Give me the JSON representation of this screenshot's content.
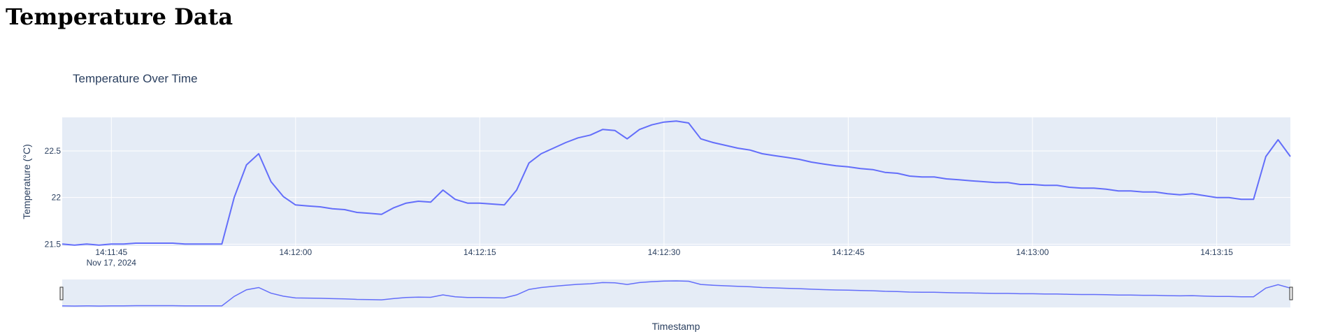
{
  "page": {
    "title": "Temperature Data"
  },
  "chart_data": {
    "type": "line",
    "title": "Temperature Over Time",
    "xlabel": "Timestamp",
    "ylabel": "Temperature (°C)",
    "x_start": "Nov 17, 2024 14:11:41",
    "x_end": "Nov 17, 2024 14:13:21",
    "x_ticks": [
      "14:11:45",
      "14:12:00",
      "14:12:15",
      "14:12:30",
      "14:12:45",
      "14:13:00",
      "14:13:15"
    ],
    "x_tick_date_label": "Nov 17, 2024",
    "y_ticks": [
      "21.5",
      "22",
      "22.5"
    ],
    "ylim": [
      21.48,
      22.86
    ],
    "grid": true,
    "legend": "none",
    "rangeslider": true,
    "line_color": "#636efa",
    "plot_bg": "#e5ecf6",
    "series": [
      {
        "x": [
          "14:11:41",
          "14:11:42",
          "14:11:43",
          "14:11:44",
          "14:11:45",
          "14:11:46",
          "14:11:47",
          "14:11:48",
          "14:11:49",
          "14:11:50",
          "14:11:51",
          "14:11:52",
          "14:11:53",
          "14:11:54",
          "14:11:55",
          "14:11:56",
          "14:11:57",
          "14:11:58",
          "14:11:59",
          "14:12:00",
          "14:12:01",
          "14:12:02",
          "14:12:03",
          "14:12:04",
          "14:12:05",
          "14:12:06",
          "14:12:07",
          "14:12:08",
          "14:12:09",
          "14:12:10",
          "14:12:11",
          "14:12:12",
          "14:12:13",
          "14:12:14",
          "14:12:15",
          "14:12:16",
          "14:12:17",
          "14:12:18",
          "14:12:19",
          "14:12:20",
          "14:12:21",
          "14:12:22",
          "14:12:23",
          "14:12:24",
          "14:12:25",
          "14:12:26",
          "14:12:27",
          "14:12:28",
          "14:12:29",
          "14:12:30",
          "14:12:31",
          "14:12:32",
          "14:12:33",
          "14:12:34",
          "14:12:35",
          "14:12:36",
          "14:12:37",
          "14:12:38",
          "14:12:39",
          "14:12:40",
          "14:12:41",
          "14:12:42",
          "14:12:43",
          "14:12:44",
          "14:12:45",
          "14:12:46",
          "14:12:47",
          "14:12:48",
          "14:12:49",
          "14:12:50",
          "14:12:51",
          "14:12:52",
          "14:12:53",
          "14:12:54",
          "14:12:55",
          "14:12:56",
          "14:12:57",
          "14:12:58",
          "14:12:59",
          "14:13:00",
          "14:13:01",
          "14:13:02",
          "14:13:03",
          "14:13:04",
          "14:13:05",
          "14:13:06",
          "14:13:07",
          "14:13:08",
          "14:13:09",
          "14:13:10",
          "14:13:11",
          "14:13:12",
          "14:13:13",
          "14:13:14",
          "14:13:15",
          "14:13:16",
          "14:13:17",
          "14:13:18",
          "14:13:19",
          "14:13:20",
          "14:13:21"
        ],
        "values": [
          21.5,
          21.49,
          21.5,
          21.49,
          21.5,
          21.5,
          21.51,
          21.51,
          21.51,
          21.51,
          21.5,
          21.5,
          21.5,
          21.5,
          22.0,
          22.35,
          22.47,
          22.17,
          22.01,
          21.92,
          21.91,
          21.9,
          21.88,
          21.87,
          21.84,
          21.83,
          21.82,
          21.89,
          21.94,
          21.96,
          21.95,
          22.08,
          21.98,
          21.94,
          21.94,
          21.93,
          21.92,
          22.08,
          22.37,
          22.47,
          22.53,
          22.59,
          22.64,
          22.67,
          22.73,
          22.72,
          22.63,
          22.73,
          22.78,
          22.81,
          22.82,
          22.8,
          22.63,
          22.59,
          22.56,
          22.53,
          22.51,
          22.47,
          22.45,
          22.43,
          22.41,
          22.38,
          22.36,
          22.34,
          22.33,
          22.31,
          22.3,
          22.27,
          22.26,
          22.23,
          22.22,
          22.22,
          22.2,
          22.19,
          22.18,
          22.17,
          22.16,
          22.16,
          22.14,
          22.14,
          22.13,
          22.13,
          22.11,
          22.1,
          22.1,
          22.09,
          22.07,
          22.07,
          22.06,
          22.06,
          22.04,
          22.03,
          22.04,
          22.02,
          22.0,
          22.0,
          21.98,
          21.98,
          22.44,
          22.62,
          22.44
        ]
      }
    ]
  }
}
